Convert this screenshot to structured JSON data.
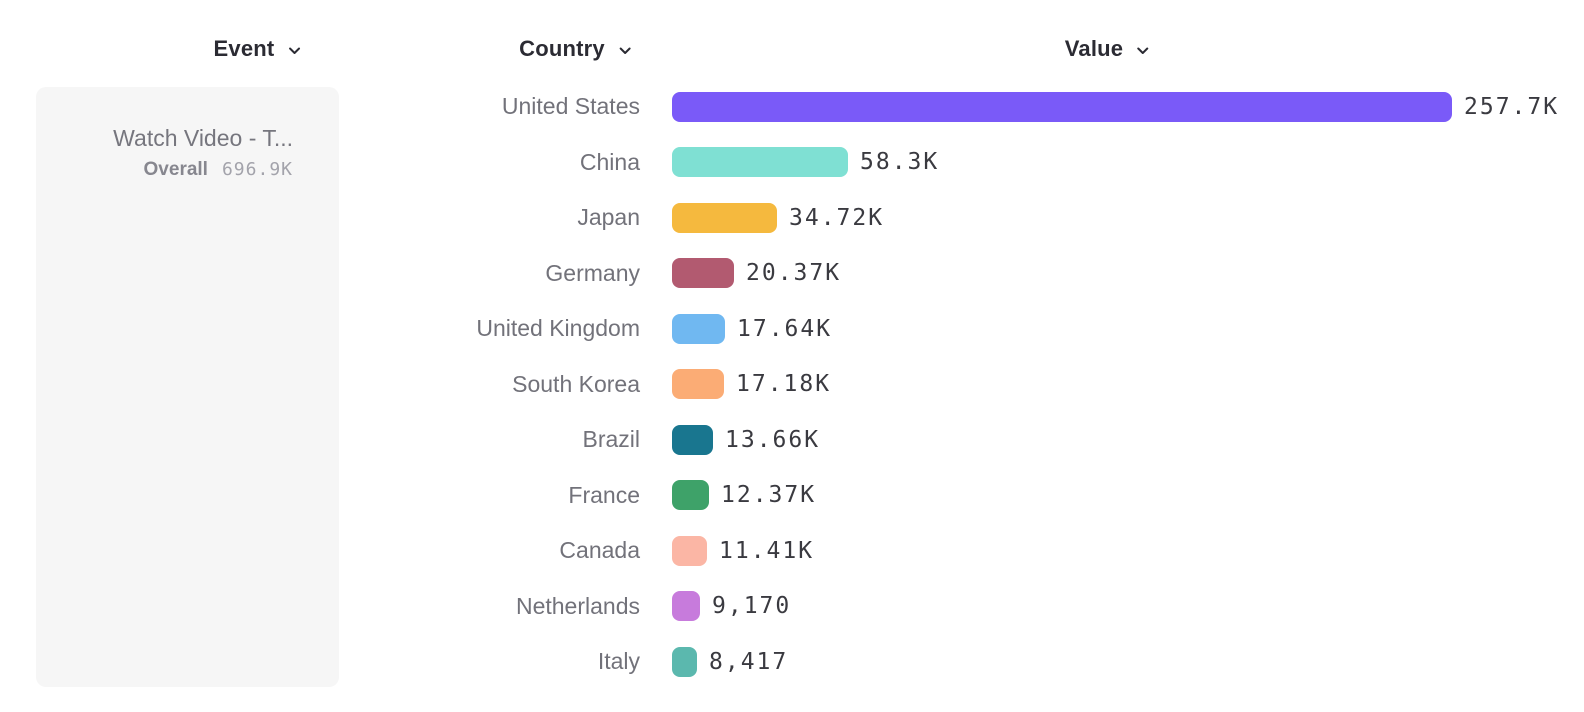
{
  "header": {
    "event_label": "Event",
    "country_label": "Country",
    "value_label": "Value"
  },
  "event_panel": {
    "event_name": "Watch Video - T...",
    "overall_label": "Overall",
    "overall_value": "696.9K"
  },
  "chart_data": {
    "type": "bar",
    "orientation": "horizontal",
    "title": "",
    "xlabel": "Value",
    "ylabel": "Country",
    "xlim": [
      0,
      257700
    ],
    "grid": false,
    "legend": "none",
    "categories": [
      "United States",
      "China",
      "Japan",
      "Germany",
      "United Kingdom",
      "South Korea",
      "Brazil",
      "France",
      "Canada",
      "Netherlands",
      "Italy"
    ],
    "values": [
      257700,
      58300,
      34720,
      20370,
      17640,
      17180,
      13660,
      12370,
      11410,
      9170,
      8417
    ],
    "value_labels": [
      "257.7K",
      "58.3K",
      "34.72K",
      "20.37K",
      "17.64K",
      "17.18K",
      "13.66K",
      "12.37K",
      "11.41K",
      "9,170",
      "8,417"
    ],
    "bar_colors": [
      "#7a5af8",
      "#7fe0d3",
      "#f5b93e",
      "#b25a70",
      "#70b8f1",
      "#fbac75",
      "#19768f",
      "#3ea269",
      "#fbb6a5",
      "#c77bdc",
      "#5bb8ae"
    ]
  },
  "colors": {
    "panel_background": "#f6f6f6",
    "header_text": "#2b2b33",
    "country_text": "#72727a",
    "value_text": "#3a3a40"
  }
}
